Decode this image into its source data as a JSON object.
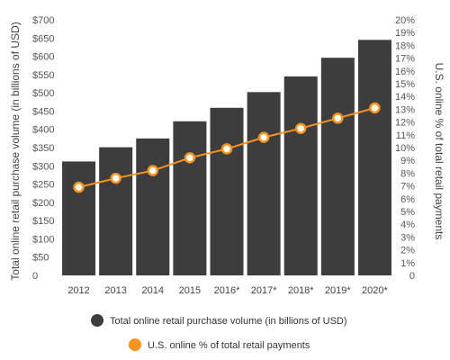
{
  "chart_data": {
    "type": "bar",
    "categories": [
      "2012",
      "2013",
      "2014",
      "2015",
      "2016*",
      "2017*",
      "2018*",
      "2019*",
      "2020*"
    ],
    "series": [
      {
        "name": "Total online retail purchase volume (in billions of USD)",
        "type": "bar",
        "axis": "left",
        "color": "#3d3d3d",
        "values": [
          312,
          351,
          375,
          422,
          459,
          502,
          545,
          596,
          645
        ]
      },
      {
        "name": "U.S. online % of total retail payments",
        "type": "line",
        "axis": "right",
        "color": "#f7931e",
        "values": [
          6.9,
          7.6,
          8.2,
          9.2,
          9.9,
          10.8,
          11.5,
          12.3,
          13.1
        ]
      }
    ],
    "ylabel": "Total online retail purchase volume (in billions of USD)",
    "y2label": "U.S. online % of total retail payments",
    "ylim": [
      0,
      700
    ],
    "y2lim": [
      0,
      20
    ],
    "yticks": [
      "0",
      "$50",
      "$100",
      "$150",
      "$200",
      "$250",
      "$300",
      "$350",
      "$400",
      "$450",
      "$500",
      "$550",
      "$600",
      "$650",
      "$700"
    ],
    "y2ticks": [
      "0",
      "1%",
      "2%",
      "3%",
      "4%",
      "5%",
      "6%",
      "7%",
      "8%",
      "9%",
      "10%",
      "11%",
      "12%",
      "13%",
      "14%",
      "15%",
      "16%",
      "17%",
      "18%",
      "19%",
      "20%"
    ],
    "legend_position": "bottom",
    "grid": false
  }
}
